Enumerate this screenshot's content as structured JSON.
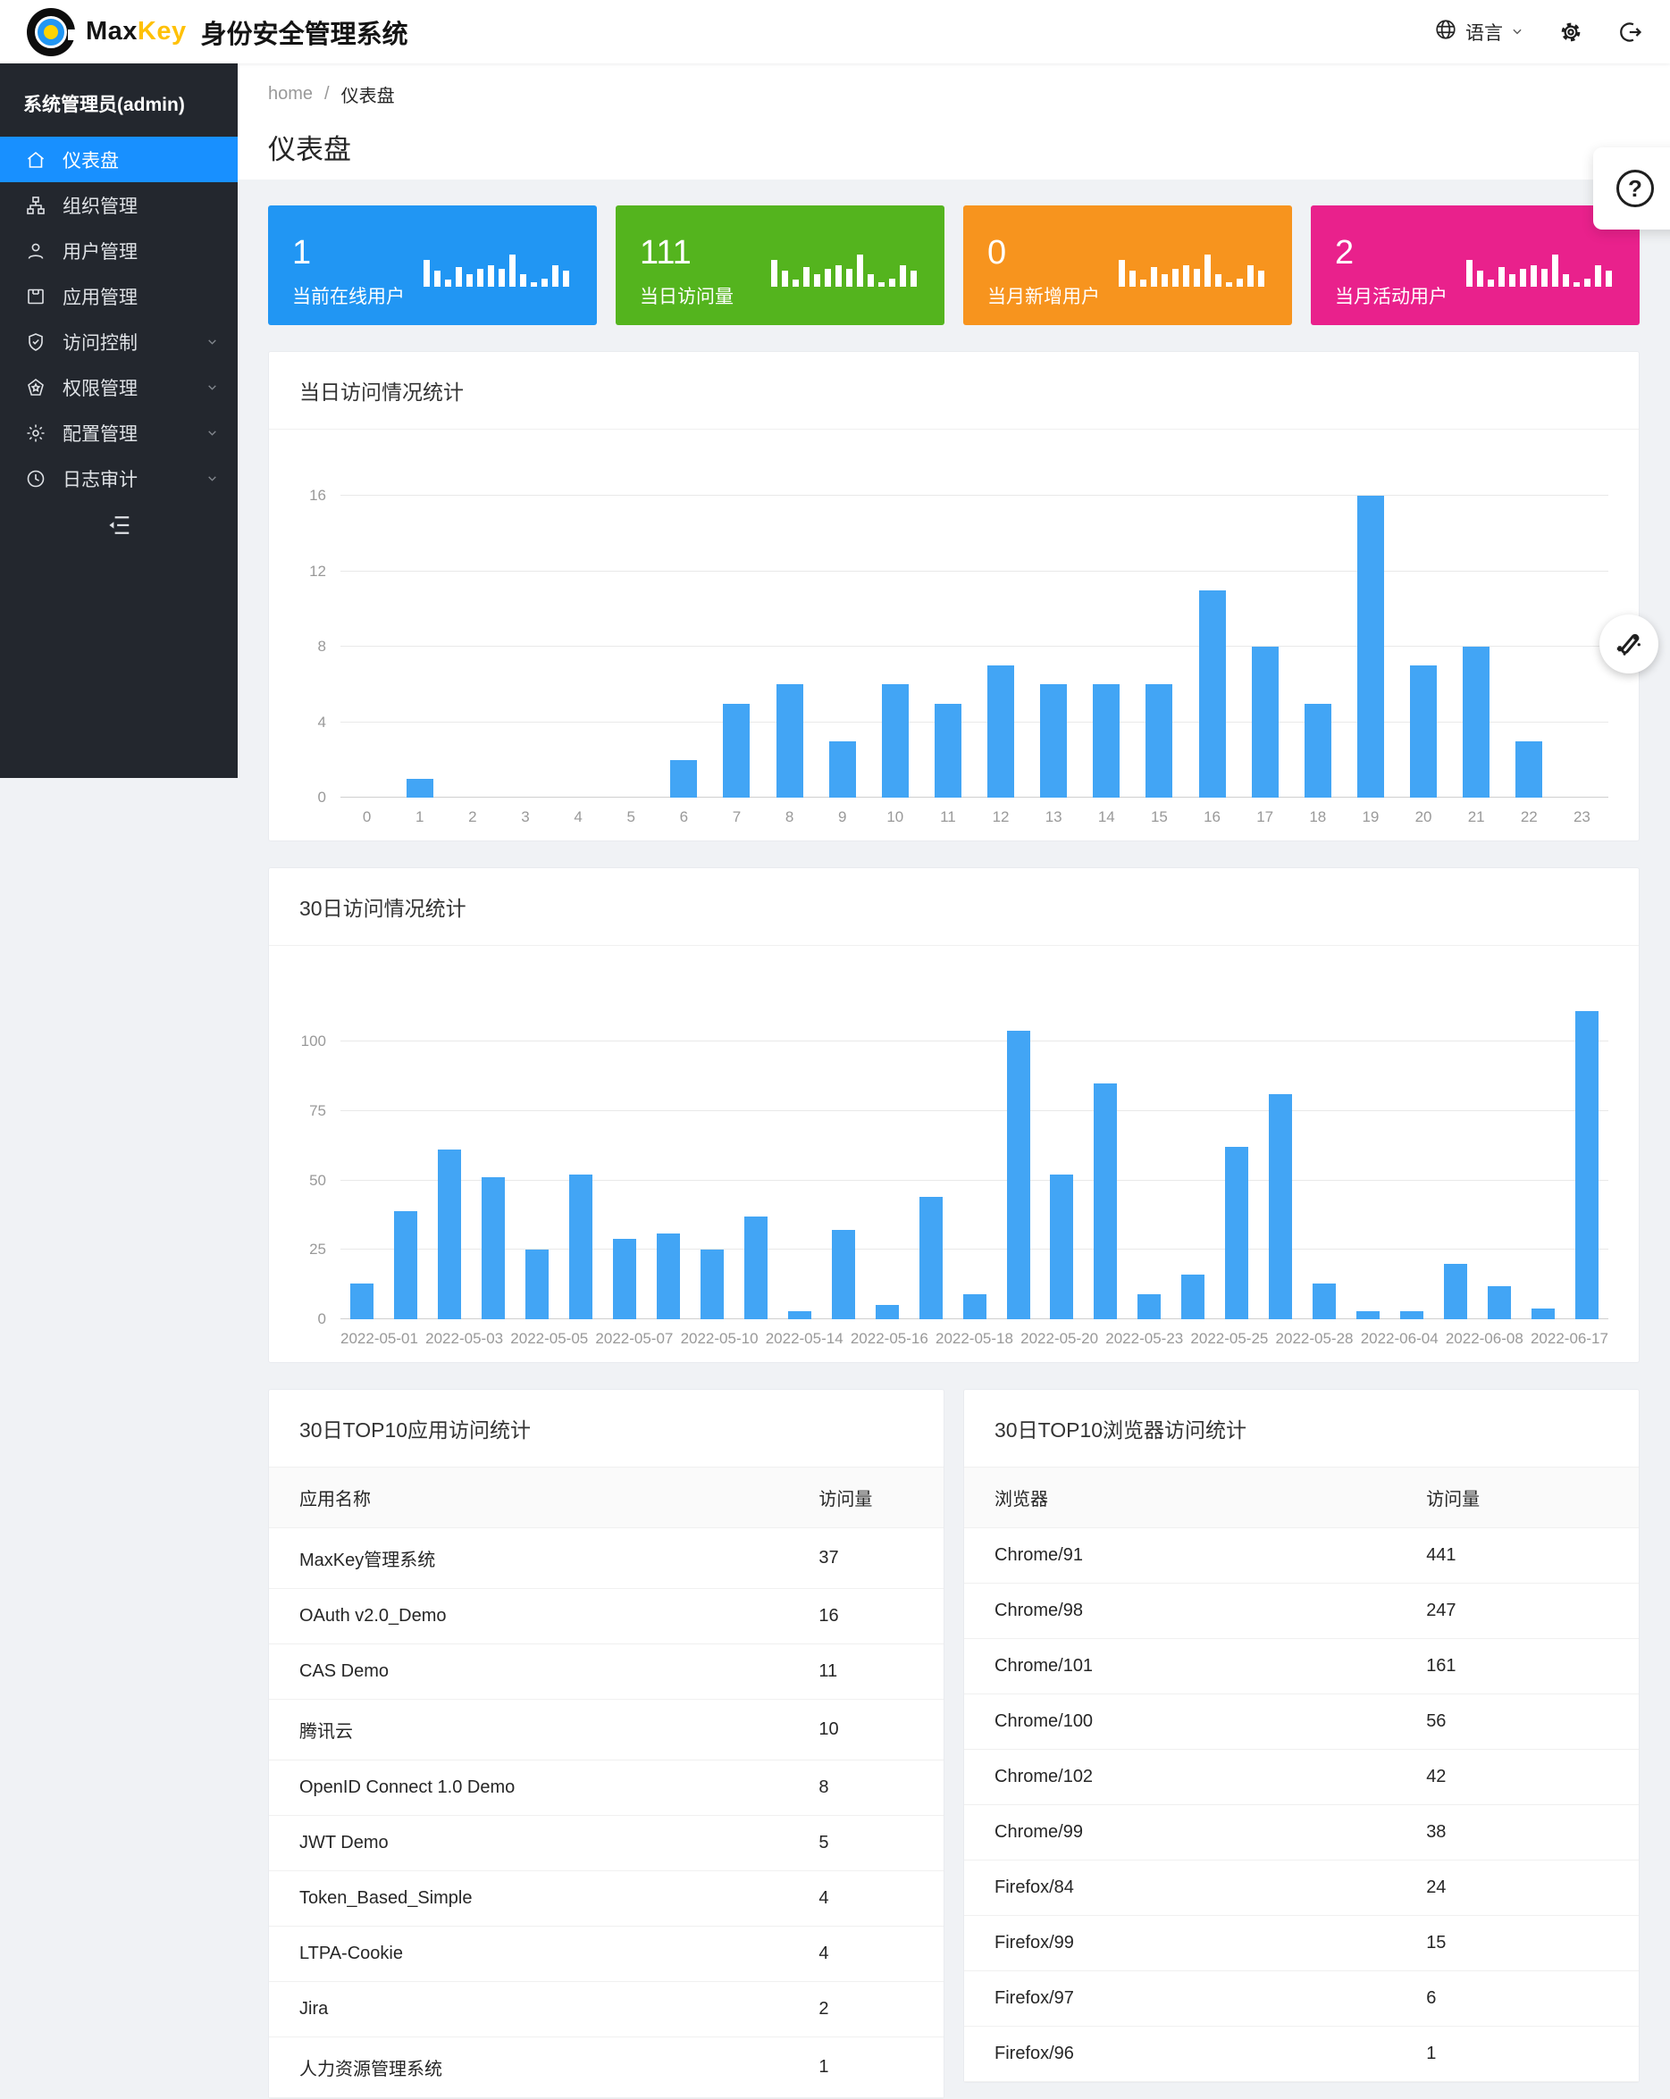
{
  "header": {
    "brand_max": "Max",
    "brand_key": "Key",
    "app_title": "身份安全管理系统",
    "language_label": "语言"
  },
  "sidebar": {
    "user_label": "系统管理员(admin)",
    "items": [
      {
        "label": "仪表盘",
        "icon": "home-icon",
        "active": true,
        "expandable": false
      },
      {
        "label": "组织管理",
        "icon": "org-icon",
        "active": false,
        "expandable": false
      },
      {
        "label": "用户管理",
        "icon": "user-icon",
        "active": false,
        "expandable": false
      },
      {
        "label": "应用管理",
        "icon": "app-icon",
        "active": false,
        "expandable": false
      },
      {
        "label": "访问控制",
        "icon": "shield-check-icon",
        "active": false,
        "expandable": true
      },
      {
        "label": "权限管理",
        "icon": "permission-icon",
        "active": false,
        "expandable": true
      },
      {
        "label": "配置管理",
        "icon": "gear-icon",
        "active": false,
        "expandable": true
      },
      {
        "label": "日志审计",
        "icon": "clock-icon",
        "active": false,
        "expandable": true
      }
    ]
  },
  "breadcrumb": {
    "home": "home",
    "separator": "/",
    "current": "仪表盘"
  },
  "page_title": "仪表盘",
  "stat_cards": [
    {
      "value": "1",
      "label": "当前在线用户",
      "color": "#2196f3"
    },
    {
      "value": "111",
      "label": "当日访问量",
      "color": "#54b41e"
    },
    {
      "value": "0",
      "label": "当月新增用户",
      "color": "#f7941e"
    },
    {
      "value": "2",
      "label": "当月活动用户",
      "color": "#e9218c"
    }
  ],
  "chart_data": [
    {
      "type": "bar",
      "title": "当日访问情况统计",
      "categories": [
        "0",
        "1",
        "2",
        "3",
        "4",
        "5",
        "6",
        "7",
        "8",
        "9",
        "10",
        "11",
        "12",
        "13",
        "14",
        "15",
        "16",
        "17",
        "18",
        "19",
        "20",
        "21",
        "22",
        "23"
      ],
      "values": [
        0,
        1,
        0,
        0,
        0,
        0,
        2,
        5,
        6,
        3,
        6,
        5,
        7,
        6,
        6,
        6,
        11,
        8,
        5,
        16,
        7,
        8,
        3,
        0
      ],
      "xlabel": "",
      "ylabel": "",
      "ylim": [
        0,
        17.5
      ],
      "yticks": [
        0,
        4,
        8,
        12,
        16
      ],
      "grid": true,
      "legend": false,
      "bar_color": "#42a5f5"
    },
    {
      "type": "bar",
      "title": "30日访问情况统计",
      "categories": [
        "2022-05-01",
        "",
        "2022-05-03",
        "",
        "2022-05-05",
        "",
        "2022-05-07",
        "",
        "2022-05-10",
        "",
        "2022-05-14",
        "",
        "2022-05-16",
        "",
        "2022-05-18",
        "",
        "2022-05-20",
        "",
        "2022-05-23",
        "",
        "2022-05-25",
        "",
        "2022-05-28",
        "",
        "2022-06-04",
        "",
        "2022-06-08",
        "",
        "2022-06-17"
      ],
      "values": [
        13,
        39,
        61,
        51,
        25,
        52,
        29,
        31,
        25,
        37,
        3,
        32,
        5,
        44,
        9,
        104,
        52,
        85,
        9,
        16,
        62,
        81,
        13,
        3,
        3,
        20,
        12,
        4,
        111
      ],
      "xlabel": "",
      "ylabel": "",
      "ylim": [
        0,
        120
      ],
      "yticks": [
        0,
        25,
        50,
        75,
        100
      ],
      "grid": true,
      "legend": false,
      "bar_color": "#42a5f5"
    }
  ],
  "tables": [
    {
      "title": "30日TOP10应用访问统计",
      "columns": [
        "应用名称",
        "访问量"
      ],
      "rows": [
        [
          "MaxKey管理系统",
          "37"
        ],
        [
          "OAuth v2.0_Demo",
          "16"
        ],
        [
          "CAS Demo",
          "11"
        ],
        [
          "腾讯云",
          "10"
        ],
        [
          "OpenID Connect 1.0 Demo",
          "8"
        ],
        [
          "JWT Demo",
          "5"
        ],
        [
          "Token_Based_Simple",
          "4"
        ],
        [
          "LTPA-Cookie",
          "4"
        ],
        [
          "Jira",
          "2"
        ],
        [
          "人力资源管理系统",
          "1"
        ]
      ]
    },
    {
      "title": "30日TOP10浏览器访问统计",
      "columns": [
        "浏览器",
        "访问量"
      ],
      "rows": [
        [
          "Chrome/91",
          "441"
        ],
        [
          "Chrome/98",
          "247"
        ],
        [
          "Chrome/101",
          "161"
        ],
        [
          "Chrome/100",
          "56"
        ],
        [
          "Chrome/102",
          "42"
        ],
        [
          "Chrome/99",
          "38"
        ],
        [
          "Firefox/84",
          "24"
        ],
        [
          "Firefox/99",
          "15"
        ],
        [
          "Firefox/97",
          "6"
        ],
        [
          "Firefox/96",
          "1"
        ]
      ]
    }
  ],
  "floating": {
    "help_glyph": "?"
  }
}
